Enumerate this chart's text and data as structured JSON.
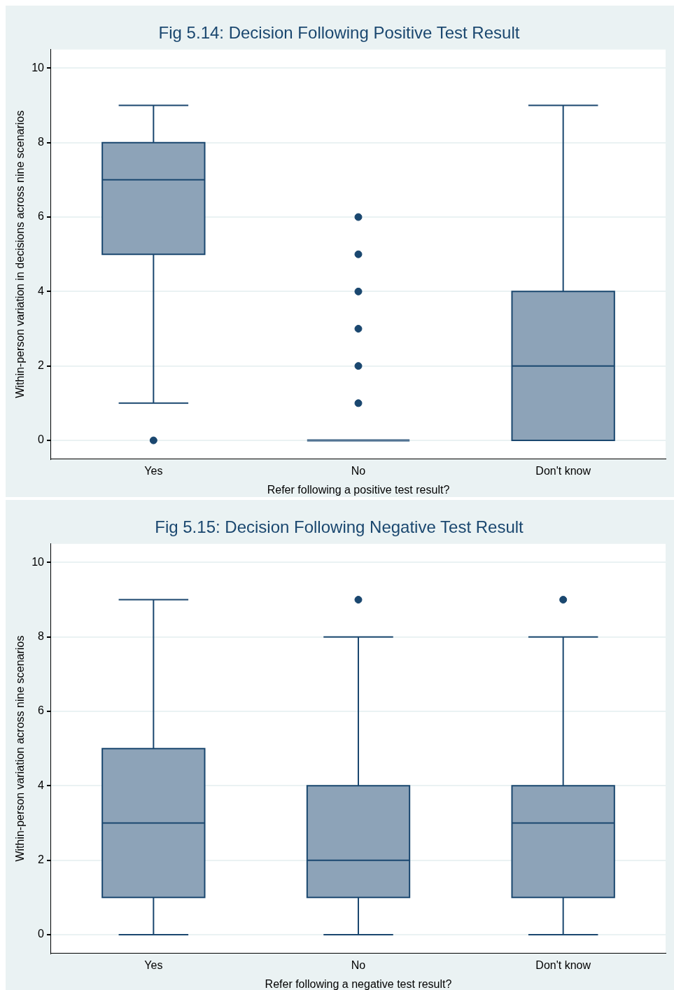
{
  "chart_data": [
    {
      "type": "box",
      "title": "Fig 5.14: Decision Following Positive Test Result",
      "xlabel": "Refer following a positive test result?",
      "ylabel": "Within-person variation in decisions across nine scenarios",
      "categories": [
        "Yes",
        "No",
        "Don't know"
      ],
      "ylim": [
        -0.5,
        10.5
      ],
      "yticks": [
        0,
        2,
        4,
        6,
        8,
        10
      ],
      "grid": "y",
      "legend": false,
      "marker": "circle",
      "series": [
        {
          "color": "#8da3b8",
          "boxes": [
            {
              "low": 1,
              "q1": 5,
              "median": 7,
              "q3": 8,
              "high": 9,
              "outliers": [
                0
              ]
            },
            {
              "low": 0,
              "q1": 0,
              "median": 0,
              "q3": 0,
              "high": 0,
              "outliers": [
                1,
                2,
                3,
                4,
                5,
                6
              ]
            },
            {
              "low": 0,
              "q1": 0,
              "median": 2,
              "q3": 4,
              "high": 9
            }
          ]
        }
      ]
    },
    {
      "type": "box",
      "title": "Fig 5.15: Decision Following Negative Test Result",
      "xlabel": "Refer following a negative test result?",
      "ylabel": "Within-person variation across nine scenarios",
      "categories": [
        "Yes",
        "No",
        "Don't know"
      ],
      "ylim": [
        -0.5,
        10.5
      ],
      "yticks": [
        0,
        2,
        4,
        6,
        8,
        10
      ],
      "grid": "y",
      "legend": false,
      "marker": "circle",
      "series": [
        {
          "color": "#8da3b8",
          "boxes": [
            {
              "low": 0,
              "q1": 1,
              "median": 3,
              "q3": 5,
              "high": 9
            },
            {
              "low": 0,
              "q1": 1,
              "median": 2,
              "q3": 4,
              "high": 8,
              "outliers": [
                9
              ]
            },
            {
              "low": 0,
              "q1": 1,
              "median": 3,
              "q3": 4,
              "high": 8,
              "outliers": [
                9
              ]
            }
          ]
        }
      ]
    }
  ]
}
